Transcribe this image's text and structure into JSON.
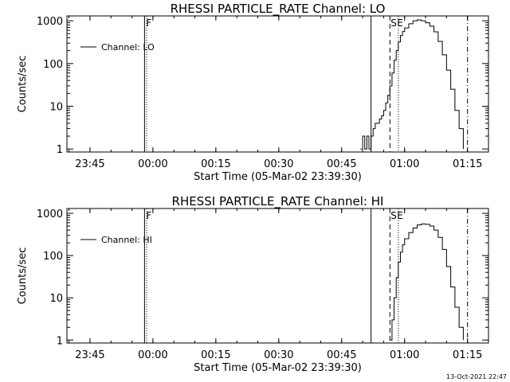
{
  "footer_timestamp": "13-Oct-2021 22:47",
  "colors": {
    "background": "#ffffff",
    "foreground": "#000000"
  },
  "chart_data": [
    {
      "type": "line",
      "title": "RHESSI PARTICLE_RATE Channel: LO",
      "xlabel": "Start Time (05-Mar-02 23:39:30)",
      "ylabel": "Counts/sec",
      "y_scale": "log",
      "ylim": [
        0.85,
        1300
      ],
      "xlim": [
        "23:39:30",
        "01:20:00"
      ],
      "x_ticks": [
        "23:45",
        "00:00",
        "00:15",
        "00:30",
        "00:45",
        "01:00",
        "01:15"
      ],
      "y_ticks": [
        "1",
        "10",
        "100",
        "1000"
      ],
      "legend": {
        "position": "top-left",
        "label": "Channel: LO"
      },
      "marker_labels": [
        "F",
        "S",
        "E"
      ],
      "vertical_lines": [
        {
          "time": "23:58:00",
          "style": "solid"
        },
        {
          "time": "23:58:30",
          "style": "dotted"
        },
        {
          "time": "00:52:00",
          "style": "solid"
        },
        {
          "time": "00:56:30",
          "style": "dashed"
        },
        {
          "time": "00:58:30",
          "style": "dotted"
        },
        {
          "time": "01:15:00",
          "style": "dashdot"
        }
      ],
      "series": [
        {
          "x": [
            "00:49:30",
            "00:50:00",
            "00:50:30",
            "00:51:00",
            "00:51:30",
            "00:52:00",
            "00:52:30",
            "00:53:00",
            "00:53:30",
            "00:54:00",
            "00:54:30",
            "00:55:00",
            "00:55:30",
            "00:56:00",
            "00:56:30",
            "00:57:00",
            "00:57:30",
            "00:58:00",
            "00:58:30",
            "00:59:00",
            "00:59:30",
            "01:00:00",
            "01:01:00",
            "01:02:00",
            "01:03:00",
            "01:04:00",
            "01:05:00",
            "01:06:00",
            "01:07:00",
            "01:08:00",
            "01:09:00",
            "01:10:00",
            "01:11:00",
            "01:12:00",
            "01:13:00",
            "01:14:00"
          ],
          "values": [
            1,
            2,
            1,
            2,
            1,
            2,
            3,
            4,
            4,
            5,
            6,
            8,
            12,
            18,
            30,
            60,
            120,
            200,
            320,
            450,
            560,
            680,
            850,
            1000,
            1050,
            1000,
            900,
            750,
            550,
            330,
            160,
            70,
            25,
            8,
            3,
            1
          ]
        }
      ]
    },
    {
      "type": "line",
      "title": "RHESSI PARTICLE_RATE Channel: HI",
      "xlabel": "Start Time (05-Mar-02 23:39:30)",
      "ylabel": "Counts/sec",
      "y_scale": "log",
      "ylim": [
        0.85,
        1300
      ],
      "xlim": [
        "23:39:30",
        "01:20:00"
      ],
      "x_ticks": [
        "23:45",
        "00:00",
        "00:15",
        "00:30",
        "00:45",
        "01:00",
        "01:15"
      ],
      "y_ticks": [
        "1",
        "10",
        "100",
        "1000"
      ],
      "legend": {
        "position": "top-left",
        "label": "Channel: HI"
      },
      "marker_labels": [
        "F",
        "S",
        "E"
      ],
      "vertical_lines": [
        {
          "time": "23:58:00",
          "style": "solid"
        },
        {
          "time": "23:58:30",
          "style": "dotted"
        },
        {
          "time": "00:52:00",
          "style": "solid"
        },
        {
          "time": "00:56:30",
          "style": "dashed"
        },
        {
          "time": "00:58:30",
          "style": "dotted"
        },
        {
          "time": "01:15:00",
          "style": "dashdot"
        }
      ],
      "series": [
        {
          "x": [
            "00:56:30",
            "00:57:00",
            "00:57:30",
            "00:58:00",
            "00:58:30",
            "00:59:00",
            "00:59:30",
            "01:00:00",
            "01:01:00",
            "01:02:00",
            "01:03:00",
            "01:04:00",
            "01:05:00",
            "01:06:00",
            "01:07:00",
            "01:08:00",
            "01:09:00",
            "01:10:00",
            "01:11:00",
            "01:12:00",
            "01:13:00",
            "01:14:00"
          ],
          "values": [
            1,
            3,
            10,
            30,
            70,
            120,
            180,
            250,
            350,
            450,
            530,
            560,
            550,
            500,
            400,
            270,
            140,
            55,
            18,
            6,
            2,
            1
          ]
        }
      ]
    }
  ]
}
